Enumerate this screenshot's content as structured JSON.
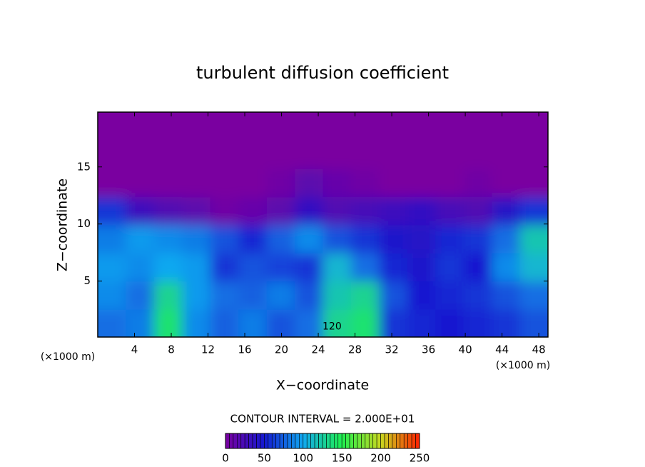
{
  "chart_data": {
    "type": "heatmap",
    "title": "turbulent diffusion coefficient",
    "x_label": "X−coordinate",
    "y_label": "Z−coordinate",
    "x_unit_label": "(×1000 m)",
    "y_unit_label": "(×1000 m)",
    "contour_note": "CONTOUR INTERVAL = 2.000E+01",
    "xlim": [
      0,
      49
    ],
    "xticks": [
      4,
      8,
      12,
      16,
      20,
      24,
      28,
      32,
      36,
      40,
      44,
      48
    ],
    "ylim": [
      0.1,
      19.8
    ],
    "yticks": [
      5,
      10,
      15
    ],
    "z": [
      [
        80,
        85,
        140,
        90,
        75,
        85,
        70,
        80,
        130,
        140,
        60,
        55,
        50,
        55,
        60,
        70
      ],
      [
        90,
        80,
        130,
        95,
        80,
        75,
        85,
        70,
        120,
        130,
        70,
        50,
        55,
        60,
        70,
        80
      ],
      [
        95,
        90,
        100,
        95,
        60,
        70,
        65,
        60,
        110,
        80,
        55,
        45,
        60,
        50,
        90,
        110
      ],
      [
        85,
        95,
        90,
        85,
        70,
        55,
        75,
        90,
        70,
        60,
        45,
        40,
        55,
        60,
        80,
        120
      ],
      [
        60,
        30,
        20,
        15,
        5,
        10,
        15,
        35,
        20,
        25,
        30,
        35,
        25,
        20,
        40,
        60
      ],
      [
        0,
        0,
        0,
        0,
        0,
        0,
        5,
        15,
        10,
        5,
        0,
        0,
        0,
        5,
        0,
        0
      ],
      [
        0,
        0,
        0,
        0,
        0,
        0,
        0,
        0,
        0,
        0,
        0,
        0,
        0,
        0,
        0,
        0
      ],
      [
        0,
        0,
        0,
        0,
        0,
        0,
        0,
        0,
        0,
        0,
        0,
        0,
        0,
        0,
        0,
        0
      ]
    ],
    "zlim": [
      0,
      250
    ],
    "colorbar_ticks": [
      0,
      50,
      100,
      150,
      200,
      250
    ],
    "colormap": [
      "#7a00a0",
      "#1418d0",
      "#10a8f0",
      "#20f050",
      "#c8d820",
      "#ff2000"
    ],
    "annotations": [
      {
        "text": "120",
        "x": 25.5,
        "y": 1
      }
    ]
  }
}
